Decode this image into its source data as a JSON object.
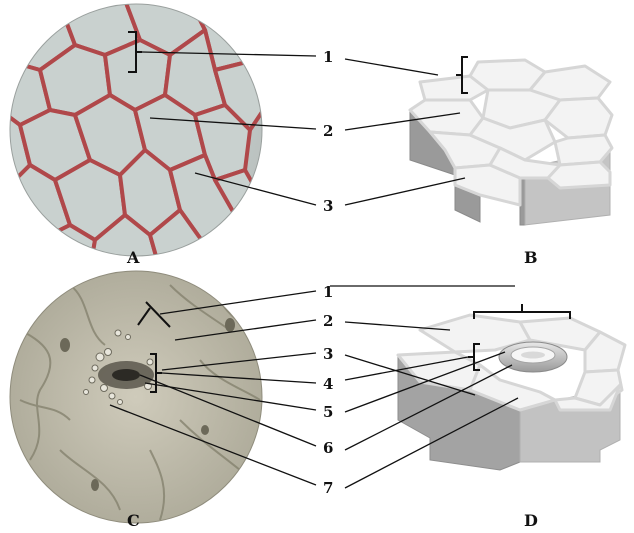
{
  "panels": {
    "a": "A",
    "b": "B",
    "c": "C",
    "d": "D"
  },
  "labels_top": [
    "1",
    "2",
    "3"
  ],
  "labels_bottom": [
    "1",
    "2",
    "3",
    "4",
    "5",
    "6",
    "7"
  ],
  "colors": {
    "cell_wall_stained": "#b0484a",
    "cell_fill": "#c3cccd",
    "block_top": "#f3f3f3",
    "block_side": "#9a9a9a",
    "stomata_bg": "#b9b6a6"
  }
}
